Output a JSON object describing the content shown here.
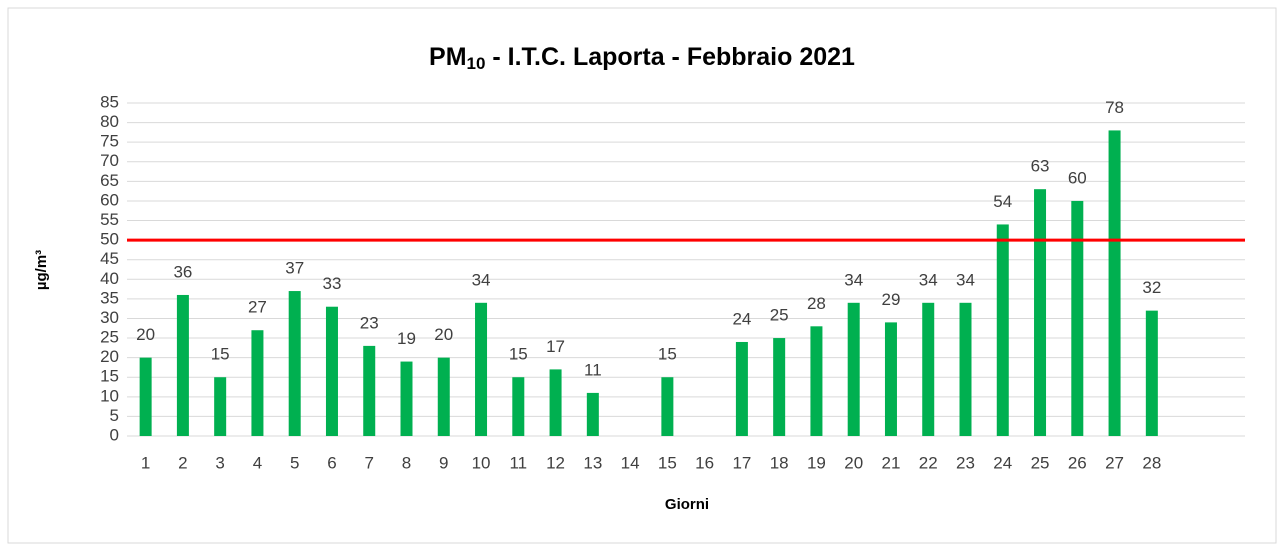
{
  "chart_data": {
    "type": "bar",
    "title": {
      "main": "PM",
      "sub": "10",
      "rest": " - I.T.C. Laporta - Febbraio 2021"
    },
    "x_label": "Giorni",
    "y_label": "µg/m³",
    "categories": [
      "1",
      "2",
      "3",
      "4",
      "5",
      "6",
      "7",
      "8",
      "9",
      "10",
      "11",
      "12",
      "13",
      "14",
      "15",
      "16",
      "17",
      "18",
      "19",
      "20",
      "21",
      "22",
      "23",
      "24",
      "25",
      "26",
      "27",
      "28",
      null,
      null
    ],
    "values": [
      20,
      36,
      15,
      27,
      37,
      33,
      23,
      19,
      20,
      34,
      15,
      17,
      11,
      null,
      15,
      null,
      24,
      25,
      28,
      34,
      29,
      34,
      34,
      54,
      63,
      60,
      78,
      32,
      null,
      null
    ],
    "color": "#00b050",
    "threshold": {
      "value": 50,
      "color": "#ff0000"
    },
    "ylim": [
      0,
      85
    ],
    "yticks": [
      0,
      5,
      10,
      15,
      20,
      25,
      30,
      35,
      40,
      45,
      50,
      55,
      60,
      65,
      70,
      75,
      80,
      85
    ],
    "grid": true
  }
}
